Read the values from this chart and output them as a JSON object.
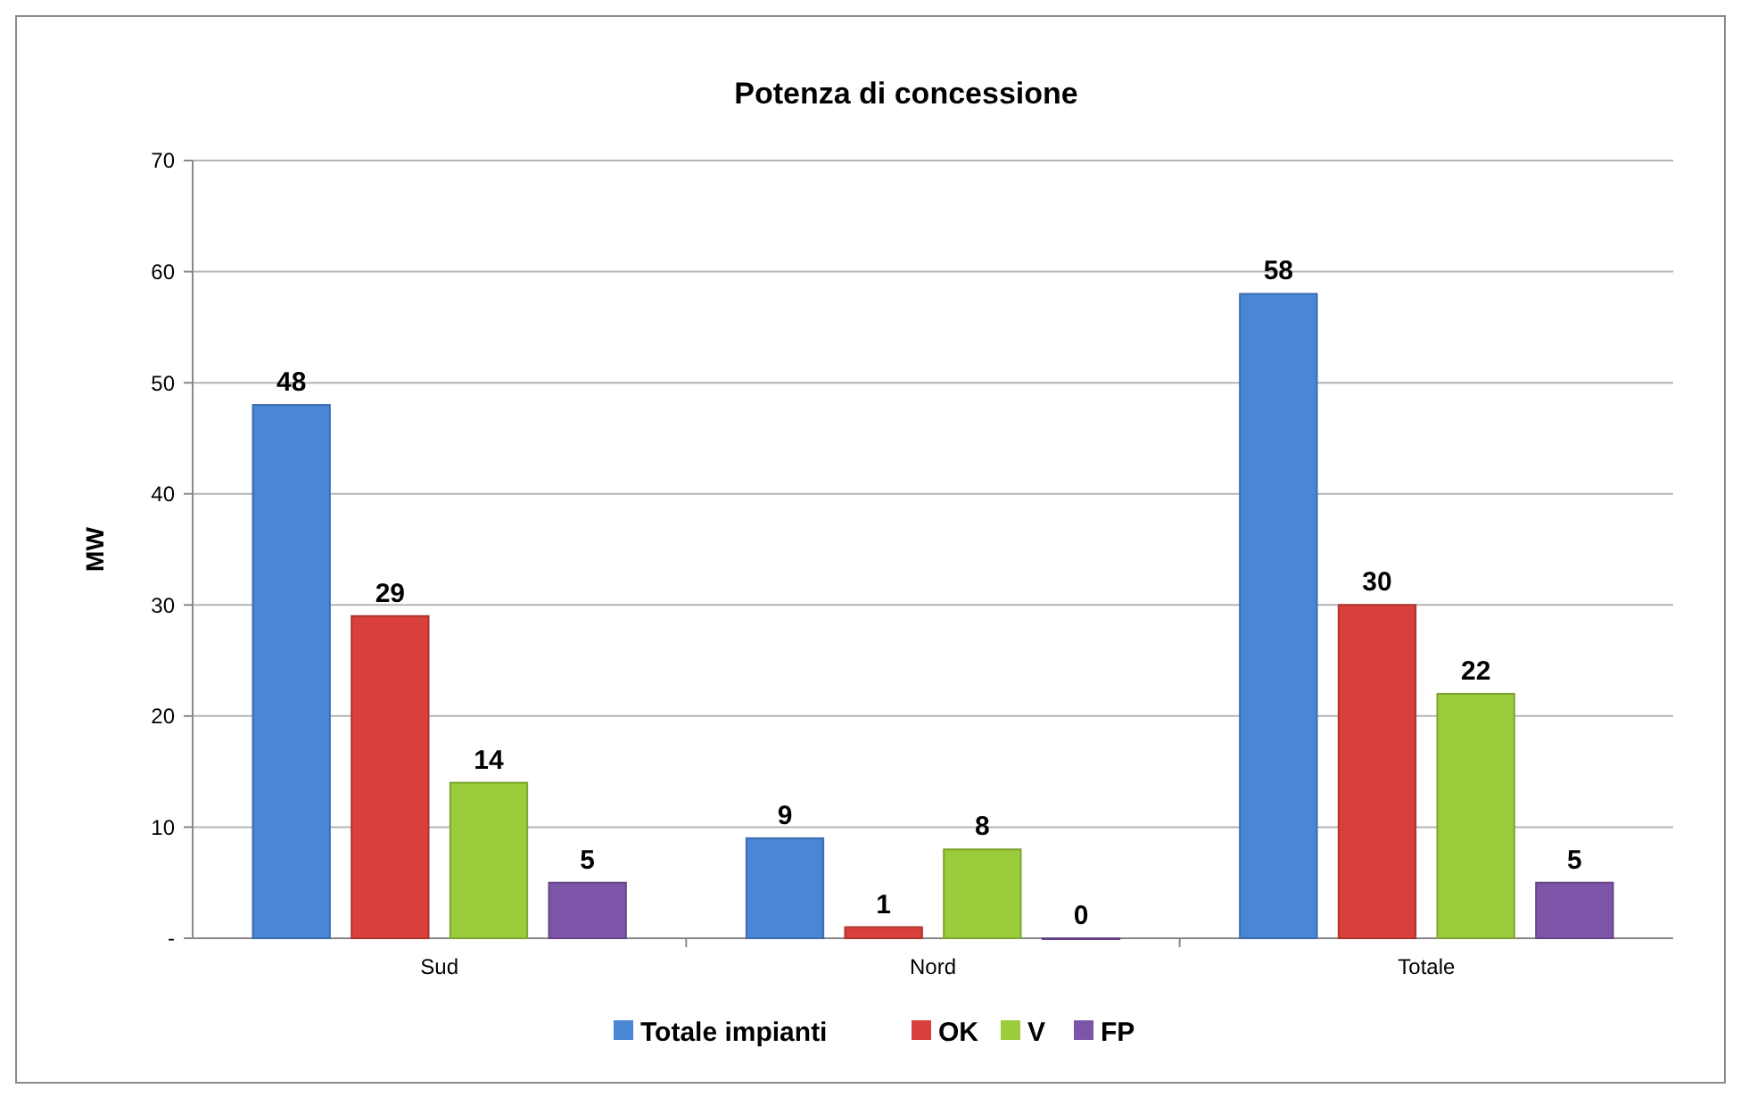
{
  "chart_data": {
    "type": "bar",
    "title": "Potenza di concessione",
    "ylabel": "MW",
    "categories": [
      "Sud",
      "Nord",
      "Totale"
    ],
    "series": [
      {
        "name": "Totale impianti",
        "color": "#4a86d6",
        "values": [
          48,
          9,
          58
        ]
      },
      {
        "name": "OK",
        "color": "#d9403b",
        "values": [
          29,
          1,
          30
        ]
      },
      {
        "name": "V",
        "color": "#9bcc3c",
        "values": [
          14,
          8,
          22
        ]
      },
      {
        "name": "FP",
        "color": "#7d55a8",
        "values": [
          5,
          0,
          5
        ]
      }
    ],
    "ylim": [
      0,
      70
    ],
    "yticks": [
      {
        "value": 0,
        "label": "-"
      },
      10,
      20,
      30,
      40,
      50,
      60,
      70
    ],
    "grid": "y",
    "legend": "bottom",
    "data_labels": true
  }
}
